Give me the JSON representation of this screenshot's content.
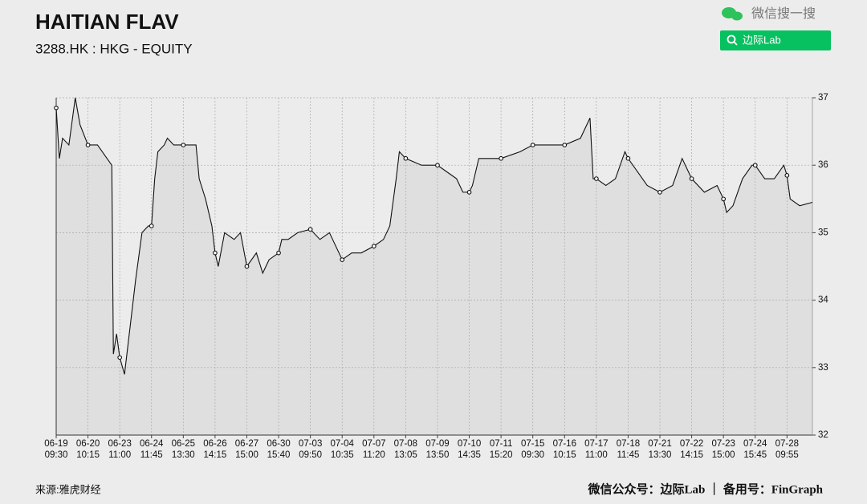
{
  "header": {
    "search_label": "微信搜一搜",
    "button_label": "边际Lab"
  },
  "footer": {
    "source": "来源:雅虎财经",
    "credit": "微信公众号：边际Lab ｜ 备用号：FinGraph"
  },
  "chart_data": {
    "type": "line",
    "title": "HAITIAN FLAV",
    "subtitle": "3288.HK : HKG - EQUITY",
    "color": "#111111",
    "area_color": "#dfdfdf",
    "grid": true,
    "markers": true,
    "xlim": [
      0,
      23.8
    ],
    "ylim": [
      32,
      37
    ],
    "yticks": [
      32,
      33,
      34,
      35,
      36,
      37
    ],
    "xticks": [
      {
        "value": 0,
        "label": [
          "06-19",
          "09:30"
        ]
      },
      {
        "value": 1,
        "label": [
          "06-20",
          "10:15"
        ]
      },
      {
        "value": 2,
        "label": [
          "06-23",
          "11:00"
        ]
      },
      {
        "value": 3,
        "label": [
          "06-24",
          "11:45"
        ]
      },
      {
        "value": 4,
        "label": [
          "06-25",
          "13:30"
        ]
      },
      {
        "value": 5,
        "label": [
          "06-26",
          "14:15"
        ]
      },
      {
        "value": 6,
        "label": [
          "06-27",
          "15:00"
        ]
      },
      {
        "value": 7,
        "label": [
          "06-30",
          "15:40"
        ]
      },
      {
        "value": 8,
        "label": [
          "07-03",
          "09:50"
        ]
      },
      {
        "value": 9,
        "label": [
          "07-04",
          "10:35"
        ]
      },
      {
        "value": 10,
        "label": [
          "07-07",
          "11:20"
        ]
      },
      {
        "value": 11,
        "label": [
          "07-08",
          "13:05"
        ]
      },
      {
        "value": 12,
        "label": [
          "07-09",
          "13:50"
        ]
      },
      {
        "value": 13,
        "label": [
          "07-10",
          "14:35"
        ]
      },
      {
        "value": 14,
        "label": [
          "07-11",
          "15:20"
        ]
      },
      {
        "value": 15,
        "label": [
          "07-15",
          "09:30"
        ]
      },
      {
        "value": 16,
        "label": [
          "07-16",
          "10:15"
        ]
      },
      {
        "value": 17,
        "label": [
          "07-17",
          "11:00"
        ]
      },
      {
        "value": 18,
        "label": [
          "07-18",
          "11:45"
        ]
      },
      {
        "value": 19,
        "label": [
          "07-21",
          "13:30"
        ]
      },
      {
        "value": 20,
        "label": [
          "07-22",
          "14:15"
        ]
      },
      {
        "value": 21,
        "label": [
          "07-23",
          "15:00"
        ]
      },
      {
        "value": 22,
        "label": [
          "07-24",
          "15:45"
        ]
      },
      {
        "value": 23,
        "label": [
          "07-28",
          "09:55"
        ]
      }
    ],
    "x": [
      0,
      0.1,
      0.2,
      0.4,
      0.6,
      0.75,
      1,
      1.3,
      1.6,
      1.75,
      1.8,
      1.9,
      2,
      2.15,
      2.3,
      2.5,
      2.7,
      2.9,
      3,
      3.1,
      3.2,
      3.4,
      3.5,
      3.7,
      4,
      4.4,
      4.5,
      4.7,
      4.9,
      5,
      5.1,
      5.3,
      5.6,
      5.8,
      6,
      6.3,
      6.5,
      6.7,
      7,
      7.1,
      7.3,
      7.6,
      8,
      8.3,
      8.6,
      9,
      9.3,
      9.6,
      10,
      10.3,
      10.5,
      10.7,
      10.8,
      11,
      11.5,
      12,
      12.3,
      12.6,
      12.8,
      13,
      13.1,
      13.3,
      13.6,
      14,
      14.3,
      14.6,
      15,
      15.5,
      16,
      16.5,
      16.8,
      16.9,
      17,
      17.3,
      17.6,
      17.9,
      18,
      18.3,
      18.6,
      19,
      19.4,
      19.7,
      20,
      20.4,
      20.8,
      21,
      21.1,
      21.3,
      21.6,
      21.9,
      22,
      22.3,
      22.6,
      22.9,
      23,
      23.1,
      23.4,
      23.8
    ],
    "values": [
      36.85,
      36.1,
      36.4,
      36.3,
      37.0,
      36.6,
      36.3,
      36.3,
      36.1,
      36.0,
      33.2,
      33.5,
      33.15,
      32.9,
      33.5,
      34.3,
      35.0,
      35.1,
      35.1,
      35.8,
      36.2,
      36.3,
      36.4,
      36.3,
      36.3,
      36.3,
      35.8,
      35.5,
      35.1,
      34.7,
      34.5,
      35.0,
      34.9,
      35.0,
      34.5,
      34.7,
      34.4,
      34.6,
      34.7,
      34.9,
      34.9,
      35.0,
      35.05,
      34.9,
      35.0,
      34.6,
      34.7,
      34.7,
      34.8,
      34.9,
      35.1,
      35.8,
      36.2,
      36.1,
      36.0,
      36.0,
      35.9,
      35.8,
      35.6,
      35.6,
      35.7,
      36.1,
      36.1,
      36.1,
      36.15,
      36.2,
      36.3,
      36.3,
      36.3,
      36.4,
      36.7,
      35.8,
      35.8,
      35.7,
      35.8,
      36.2,
      36.1,
      35.9,
      35.7,
      35.6,
      35.7,
      36.1,
      35.8,
      35.6,
      35.7,
      35.5,
      35.3,
      35.4,
      35.8,
      36.0,
      36.0,
      35.8,
      35.8,
      36.0,
      35.85,
      35.5,
      35.4,
      35.45
    ]
  }
}
